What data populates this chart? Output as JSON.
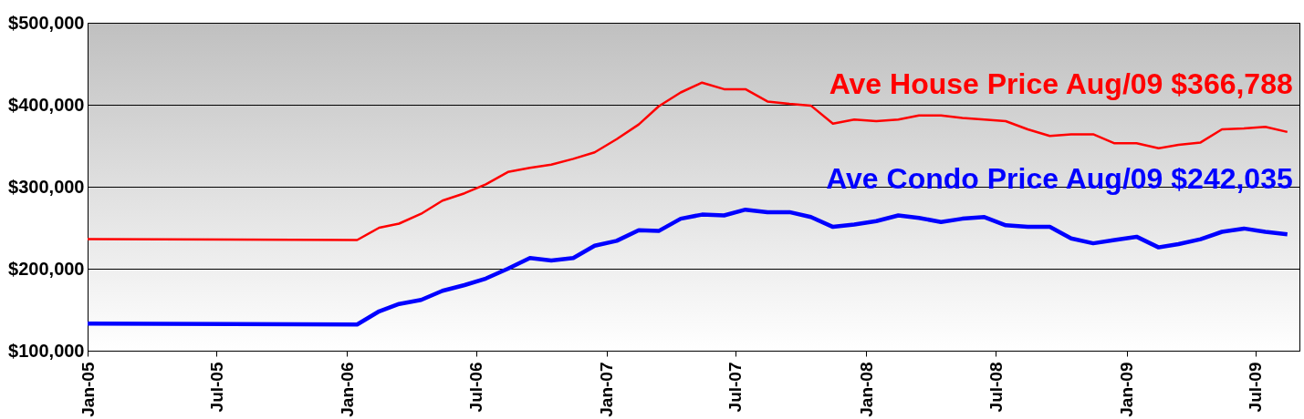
{
  "chart_data": {
    "type": "line",
    "legend": false,
    "grid": "y",
    "marker": "none",
    "line_style": "solid",
    "x": [
      "2005-01",
      "2006-01-15",
      "2006-02-15",
      "2006-03-15",
      "2006-04-15",
      "2006-05-15",
      "2006-06-15",
      "2006-07-15",
      "2006-08-15",
      "2006-09-15",
      "2006-10-15",
      "2006-11-15",
      "2006-12-15",
      "2007-01-15",
      "2007-02-15",
      "2007-03-15",
      "2007-04-15",
      "2007-05-15",
      "2007-06-15",
      "2007-07-15",
      "2007-08-15",
      "2007-09-15",
      "2007-10-15",
      "2007-11-15",
      "2007-12-15",
      "2008-01-15",
      "2008-02-15",
      "2008-03-15",
      "2008-04-15",
      "2008-05-15",
      "2008-06-15",
      "2008-07-15",
      "2008-08-15",
      "2008-09-15",
      "2008-10-15",
      "2008-11-15",
      "2008-12-15",
      "2009-01-15",
      "2009-02-15",
      "2009-03-15",
      "2009-04-15",
      "2009-05-15",
      "2009-06-15",
      "2009-07-15",
      "2009-08-15"
    ],
    "series": [
      {
        "name": "Ave House Price Aug/09 $366,788",
        "color": "#ff0000",
        "values": [
          236000,
          235000,
          250000,
          255000,
          267000,
          283000,
          292000,
          303000,
          318000,
          323000,
          327000,
          334000,
          342000,
          358000,
          376000,
          398000,
          415000,
          427000,
          419000,
          419000,
          404000,
          401000,
          399000,
          377000,
          382000,
          380000,
          382000,
          387000,
          387000,
          384000,
          382000,
          380000,
          370000,
          362000,
          364000,
          364000,
          353000,
          353000,
          347000,
          351000,
          354000,
          370000,
          371000,
          373000,
          366788
        ]
      },
      {
        "name": "Ave Condo Price Aug/09 $242,035",
        "color": "#0000ff",
        "values": [
          133000,
          132000,
          148000,
          157000,
          162000,
          173000,
          180000,
          188000,
          200000,
          213000,
          210000,
          213000,
          228000,
          234000,
          247000,
          246000,
          261000,
          266000,
          265000,
          272000,
          269000,
          269000,
          263000,
          251000,
          254000,
          258000,
          265000,
          262000,
          257000,
          261000,
          263000,
          253000,
          251000,
          251000,
          237000,
          231000,
          235000,
          239000,
          226000,
          230000,
          236000,
          245000,
          249000,
          245000,
          242035
        ]
      }
    ],
    "xlim": [
      "2005-01",
      "2009-09"
    ],
    "xticks": [
      {
        "value": "2005-01",
        "label": "Jan-05"
      },
      {
        "value": "2005-07",
        "label": "Jul-05"
      },
      {
        "value": "2006-01",
        "label": "Jan-06"
      },
      {
        "value": "2006-07",
        "label": "Jul-06"
      },
      {
        "value": "2007-01",
        "label": "Jan-07"
      },
      {
        "value": "2007-07",
        "label": "Jul-07"
      },
      {
        "value": "2008-01",
        "label": "Jan-08"
      },
      {
        "value": "2008-07",
        "label": "Jul-08"
      },
      {
        "value": "2009-01",
        "label": "Jan-09"
      },
      {
        "value": "2009-07",
        "label": "Jul-09"
      }
    ],
    "ylim": [
      100000,
      500000
    ],
    "yticks": [
      {
        "value": 100000,
        "label": "$100,000"
      },
      {
        "value": 200000,
        "label": "$200,000"
      },
      {
        "value": 300000,
        "label": "$300,000"
      },
      {
        "value": 400000,
        "label": "$400,000"
      },
      {
        "value": 500000,
        "label": "$500,000"
      }
    ]
  }
}
